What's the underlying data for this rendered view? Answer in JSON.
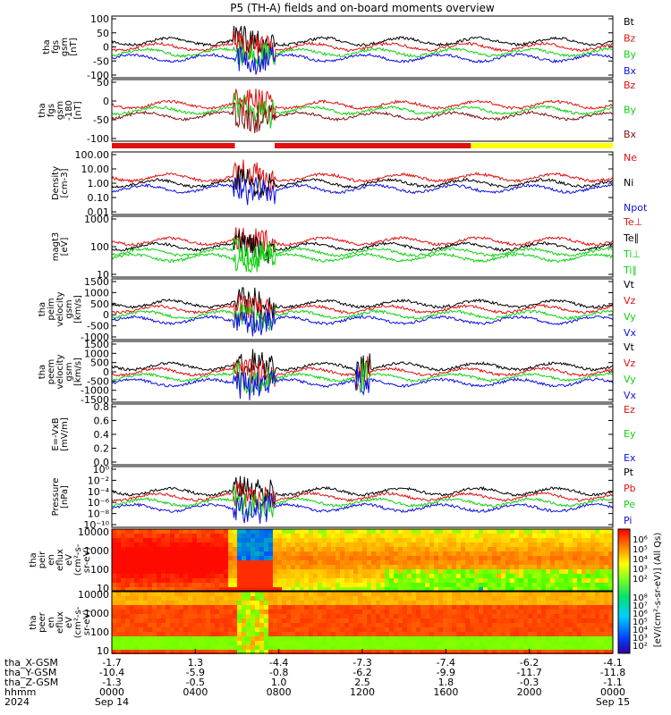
{
  "title": "P5 (TH-A) fields and on-board moments overview",
  "chart_data": {
    "type": "line",
    "title": "P5 (TH-A) fields and on-board moments overview",
    "x_axis": {
      "ticks": [
        "0000",
        "0400",
        "0800",
        "1200",
        "1600",
        "2000",
        "0000"
      ],
      "tick_hours": [
        0,
        4,
        8,
        12,
        16,
        20,
        24
      ],
      "range_hours": [
        0,
        24
      ],
      "date_labels": [
        {
          "label": "Sep 14",
          "hour": 0
        },
        {
          "label": "Sep 15",
          "hour": 24
        }
      ],
      "row_labels": [
        "tha_X-GSM",
        "tha_Y-GSM",
        "tha_Z-GSM",
        "hhmm",
        "2024"
      ],
      "ephemeris": {
        "x": [
          "-1.7",
          "1.3",
          "-4.4",
          "-7.3",
          "-7.4",
          "-6.2",
          "-4.1"
        ],
        "y": [
          "-10.4",
          "-5.9",
          "-0.8",
          "-6.2",
          "-9.9",
          "-11.7",
          "-11.8"
        ],
        "z": [
          "-1.3",
          "-0.5",
          "1.0",
          "2.5",
          "1.8",
          "-0.3",
          "-1.1"
        ]
      }
    },
    "panels": [
      {
        "id": "fgs",
        "ylabel": [
          "tha",
          "fgs",
          "gsm",
          "[nT]"
        ],
        "yticks": [
          "100",
          "50",
          "0",
          "-50",
          "-100"
        ],
        "ylim": [
          -100,
          100
        ],
        "legend": [
          {
            "name": "Bt",
            "color": "#000000"
          },
          {
            "name": "Bz",
            "color": "#e01010"
          },
          {
            "name": "By",
            "color": "#10d010"
          },
          {
            "name": "Bx",
            "color": "#1010e0"
          }
        ]
      },
      {
        "id": "fgs_loss",
        "ylabel": [
          "tha",
          "fgs",
          "gsm",
          "-180",
          "[nT]"
        ],
        "yticks": [
          "50",
          "0",
          "-50",
          "-100"
        ],
        "ylim": [
          -120,
          80
        ],
        "legend": [
          {
            "name": "Bz",
            "color": "#e01010"
          },
          {
            "name": "By",
            "color": "#10d010"
          },
          {
            "name": "Bx",
            "color": "#801010"
          }
        ]
      },
      {
        "id": "density",
        "ylabel": [
          "Density",
          "[cm-3]"
        ],
        "yticks": [
          "100.00",
          "10.00",
          "1.00",
          "0.10",
          "0.01"
        ],
        "scale": "log",
        "legend": [
          {
            "name": "Ne",
            "color": "#e01010"
          },
          {
            "name": "Ni",
            "color": "#000000"
          },
          {
            "name": "Npot",
            "color": "#1010e0"
          }
        ]
      },
      {
        "id": "temp",
        "ylabel": [
          "magt3",
          "[eV]"
        ],
        "yticks": [
          "1000",
          "100",
          "10"
        ],
        "scale": "log",
        "legend": [
          {
            "name": "Te⊥",
            "color": "#e01010"
          },
          {
            "name": "Te∥",
            "color": "#000000"
          },
          {
            "name": "Ti⊥",
            "color": "#10d010"
          },
          {
            "name": "Ti∥",
            "color": "#10d010"
          }
        ]
      },
      {
        "id": "peim",
        "ylabel": [
          "tha",
          "peim",
          "velocity",
          "gsm",
          "[km/s]"
        ],
        "yticks": [
          "1500",
          "1000",
          "500",
          "0",
          "-500",
          "-1000"
        ],
        "ylim": [
          -1500,
          1500
        ],
        "legend": [
          {
            "name": "Vt",
            "color": "#000000"
          },
          {
            "name": "Vz",
            "color": "#e01010"
          },
          {
            "name": "Vy",
            "color": "#10d010"
          },
          {
            "name": "Vx",
            "color": "#1010e0"
          }
        ]
      },
      {
        "id": "peem",
        "ylabel": [
          "tha",
          "peem",
          "velocity",
          "gsm",
          "[km/s]"
        ],
        "yticks": [
          "1500",
          "1000",
          "500",
          "0",
          "-500",
          "-1000",
          "-1500"
        ],
        "ylim": [
          -1500,
          1500
        ],
        "legend": [
          {
            "name": "Vt",
            "color": "#000000"
          },
          {
            "name": "Vz",
            "color": "#e01010"
          },
          {
            "name": "Vy",
            "color": "#10d010"
          },
          {
            "name": "Vx",
            "color": "#1010e0"
          }
        ]
      },
      {
        "id": "efield",
        "ylabel": [
          "E=-VxB",
          "[mV/m]"
        ],
        "yticks": [
          "0.8",
          "0.6",
          "0.4",
          "0.2",
          "0.0"
        ],
        "ylim": [
          0,
          1
        ],
        "legend": [
          {
            "name": "Ez",
            "color": "#e01010"
          },
          {
            "name": "Ey",
            "color": "#10d010"
          },
          {
            "name": "Ex",
            "color": "#1010e0"
          }
        ]
      },
      {
        "id": "pressure",
        "ylabel": [
          "Pressure",
          "[nPa]"
        ],
        "yticks": [
          "10⁰",
          "10⁻²",
          "10⁻⁴",
          "10⁻⁶",
          "10⁻⁸",
          "10⁻¹⁰"
        ],
        "scale": "log",
        "legend": [
          {
            "name": "Pt",
            "color": "#000000"
          },
          {
            "name": "Pb",
            "color": "#e01010"
          },
          {
            "name": "Pe",
            "color": "#10d010"
          },
          {
            "name": "Pi",
            "color": "#1010e0"
          }
        ]
      },
      {
        "id": "peir",
        "ylabel": [
          "tha",
          "peir",
          "en",
          "eflux",
          "eV",
          "(cm²-s-",
          "sr-eV)"
        ],
        "yticks": [
          "10000",
          "1000",
          "100",
          "10"
        ],
        "scale": "log",
        "type": "heatmap"
      },
      {
        "id": "peer",
        "ylabel": [
          "tha",
          "peer",
          "en",
          "eflux",
          "eV",
          "(cm²-s-",
          "sr-eV)"
        ],
        "yticks": [
          "10000",
          "1000",
          "100",
          "10"
        ],
        "scale": "log",
        "type": "heatmap"
      }
    ],
    "mode_bar": {
      "segments": [
        {
          "from": 0,
          "to": 5.9,
          "color": "#e01010"
        },
        {
          "from": 5.9,
          "to": 7.8,
          "color": "#ffffff"
        },
        {
          "from": 7.8,
          "to": 17.2,
          "color": "#e01010"
        },
        {
          "from": 17.2,
          "to": 24,
          "color": "#ffff00"
        }
      ]
    },
    "colorbar": {
      "label": "[eV/(cm²-s-sr-eV)] (All Qs)",
      "ticks_top": [
        "10⁶",
        "10⁵",
        "10⁴",
        "10³",
        "10²"
      ],
      "ticks_bottom": [
        "10⁸",
        "10⁷",
        "10⁶",
        "10⁵",
        "10⁴",
        "10³",
        "10²"
      ]
    }
  }
}
